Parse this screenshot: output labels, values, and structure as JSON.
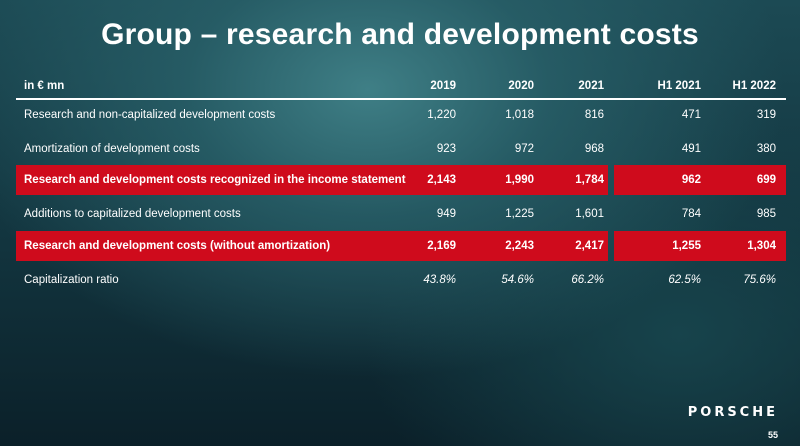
{
  "slide": {
    "title": "Group – research and development costs",
    "logo": "PORSCHE",
    "page_number": "55"
  },
  "table": {
    "header": {
      "label": "in € mn",
      "columns": [
        "2019",
        "2020",
        "2021",
        "H1 2021",
        "H1 2022"
      ]
    },
    "rows": [
      {
        "label": "Research and non-capitalized development costs",
        "values": [
          "1,220",
          "1,018",
          "816",
          "471",
          "319"
        ],
        "highlight": false
      },
      {
        "label": "Amortization of development costs",
        "values": [
          "923",
          "972",
          "968",
          "491",
          "380"
        ],
        "highlight": false
      },
      {
        "label": "Research and development costs recognized in the income statement",
        "values": [
          "2,143",
          "1,990",
          "1,784",
          "962",
          "699"
        ],
        "highlight": true
      },
      {
        "label": "Additions to capitalized development costs",
        "values": [
          "949",
          "1,225",
          "1,601",
          "784",
          "985"
        ],
        "highlight": false
      },
      {
        "label": "Research and development costs (without amortization)",
        "values": [
          "2,169",
          "2,243",
          "2,417",
          "1,255",
          "1,304"
        ],
        "highlight": true
      },
      {
        "label": "Capitalization ratio",
        "values": [
          "43.8%",
          "54.6%",
          "66.2%",
          "62.5%",
          "75.6%"
        ],
        "highlight": false
      }
    ]
  },
  "colors": {
    "highlight": "#cf0b1c",
    "text": "#ffffff"
  }
}
